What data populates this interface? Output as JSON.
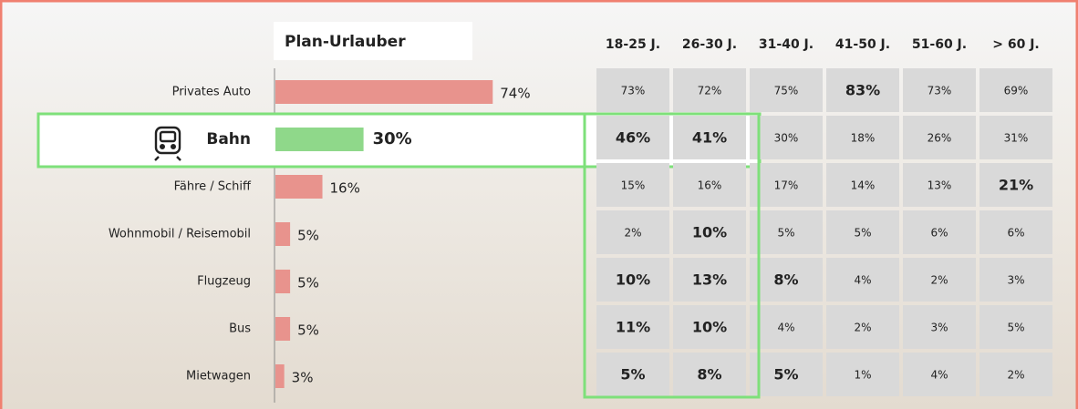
{
  "chart_data": {
    "type": "bar",
    "title": "Plan-Urlauber",
    "categories": [
      "Privates Auto",
      "Bahn",
      "Fähre / Schiff",
      "Wohnmobil / Reisemobil",
      "Flugzeug",
      "Bus",
      "Mietwagen"
    ],
    "values": [
      74,
      30,
      16,
      5,
      5,
      5,
      3
    ],
    "value_labels": [
      "74%",
      "30%",
      "16%",
      "5%",
      "5%",
      "5%",
      "3%"
    ],
    "colors": [
      "#e8938d",
      "#8fd88a",
      "#e8938d",
      "#e8938d",
      "#e8938d",
      "#e8938d",
      "#e8938d"
    ]
  },
  "table": {
    "columns": [
      "18-25 J.",
      "26-30 J.",
      "31-40 J.",
      "41-50 J.",
      "51-60 J.",
      "> 60 J."
    ],
    "rows": [
      [
        "73%",
        "72%",
        "75%",
        {
          "text": "83%",
          "bold": true
        },
        "73%",
        "69%"
      ],
      [
        {
          "text": "46%",
          "bold": true
        },
        {
          "text": "41%",
          "bold": true
        },
        "30%",
        "18%",
        "26%",
        "31%"
      ],
      [
        "15%",
        "16%",
        "17%",
        "14%",
        "13%",
        {
          "text": "21%",
          "bold": true
        }
      ],
      [
        "2%",
        {
          "text": "10%",
          "bold": true
        },
        "5%",
        "5%",
        "6%",
        "6%"
      ],
      [
        {
          "text": "10%",
          "bold": true
        },
        {
          "text": "13%",
          "bold": true
        },
        {
          "text": "8%",
          "bold": true
        },
        "4%",
        "2%",
        "3%"
      ],
      [
        {
          "text": "11%",
          "bold": true
        },
        {
          "text": "10%",
          "bold": true
        },
        "4%",
        "2%",
        "3%",
        "5%"
      ],
      [
        {
          "text": "5%",
          "bold": true
        },
        {
          "text": "8%",
          "bold": true
        },
        {
          "text": "5%",
          "bold": true
        },
        "1%",
        "4%",
        "2%"
      ]
    ]
  }
}
